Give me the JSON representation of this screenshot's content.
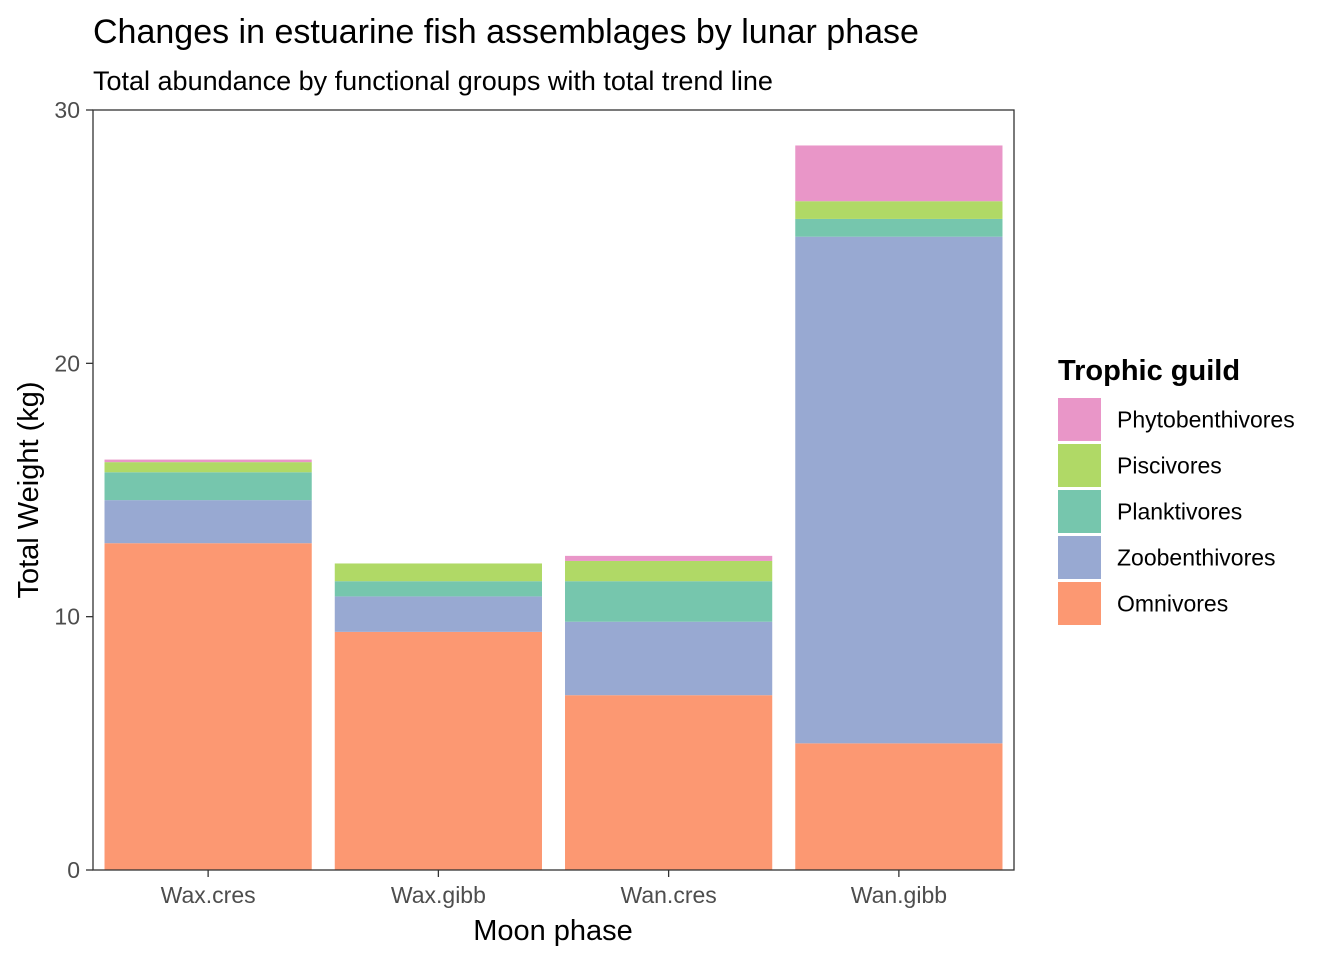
{
  "chart_data": {
    "type": "bar",
    "stacked": true,
    "title": "Changes in estuarine fish assemblages by lunar phase",
    "subtitle": "Total abundance by functional groups with total trend line",
    "xlabel": "Moon phase",
    "ylabel": "Total Weight (kg)",
    "ylim": [
      0,
      30
    ],
    "yticks": [
      0,
      10,
      20,
      30
    ],
    "grid": false,
    "legend_position": "right",
    "legend_title": "Trophic guild",
    "categories": [
      "Wax.cres",
      "Wax.gibb",
      "Wan.cres",
      "Wan.gibb"
    ],
    "series": [
      {
        "name": "Omnivores",
        "color": "#FC9872",
        "values": [
          12.9,
          9.4,
          6.9,
          5.0
        ]
      },
      {
        "name": "Zoobenthivores",
        "color": "#98A9D2",
        "values": [
          1.7,
          1.4,
          2.9,
          20.0
        ]
      },
      {
        "name": "Planktivores",
        "color": "#76C6AD",
        "values": [
          1.1,
          0.6,
          1.6,
          0.7
        ]
      },
      {
        "name": "Piscivores",
        "color": "#B0D966",
        "values": [
          0.4,
          0.7,
          0.8,
          0.7
        ]
      },
      {
        "name": "Phytobenthivores",
        "color": "#E996C8",
        "values": [
          0.1,
          0.0,
          0.2,
          2.2
        ]
      }
    ]
  }
}
